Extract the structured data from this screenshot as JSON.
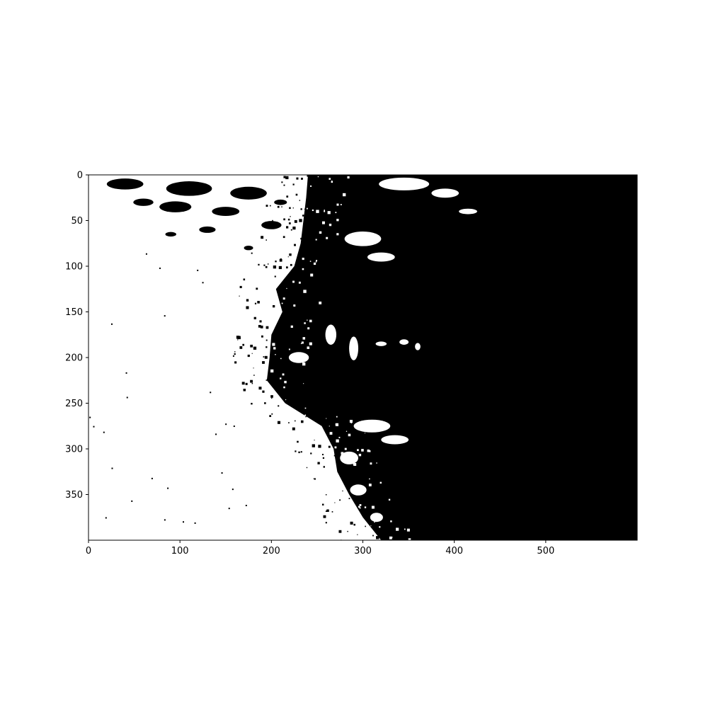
{
  "chart_data": {
    "type": "heatmap",
    "title": "",
    "xlabel": "",
    "ylabel": "",
    "colormap": "binary (black / white)",
    "xlim": [
      0,
      600
    ],
    "ylim": [
      400,
      0
    ],
    "x_ticks": [
      0,
      100,
      200,
      300,
      400,
      500
    ],
    "y_ticks": [
      0,
      50,
      100,
      150,
      200,
      250,
      300,
      350
    ],
    "x_tick_labels": [
      "0",
      "100",
      "200",
      "300",
      "400",
      "500"
    ],
    "y_tick_labels": [
      "0",
      "50",
      "100",
      "150",
      "200",
      "250",
      "300",
      "350"
    ],
    "image_width": 600,
    "image_height": 400,
    "boundary_profile": [
      {
        "y": 0,
        "x": 240
      },
      {
        "y": 25,
        "x": 238
      },
      {
        "y": 50,
        "x": 235
      },
      {
        "y": 75,
        "x": 232
      },
      {
        "y": 100,
        "x": 225
      },
      {
        "y": 125,
        "x": 205
      },
      {
        "y": 150,
        "x": 212
      },
      {
        "y": 175,
        "x": 200
      },
      {
        "y": 200,
        "x": 198
      },
      {
        "y": 225,
        "x": 195
      },
      {
        "y": 250,
        "x": 215
      },
      {
        "y": 275,
        "x": 255
      },
      {
        "y": 300,
        "x": 268
      },
      {
        "y": 325,
        "x": 272
      },
      {
        "y": 350,
        "x": 285
      },
      {
        "y": 375,
        "x": 300
      },
      {
        "y": 400,
        "x": 320
      }
    ],
    "dark_region_right_of": 350
  },
  "colors": {
    "foreground": "#000000",
    "background": "#ffffff"
  }
}
